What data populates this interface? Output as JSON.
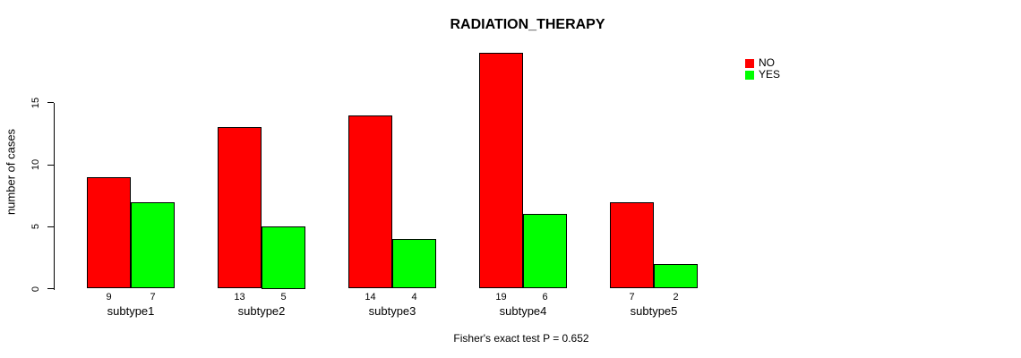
{
  "chart_data": {
    "type": "bar",
    "title": "RADIATION_THERAPY",
    "categories": [
      "subtype1",
      "subtype2",
      "subtype3",
      "subtype4",
      "subtype5"
    ],
    "series": [
      {
        "name": "NO",
        "color": "#ff0000",
        "values": [
          9,
          13,
          14,
          19,
          7
        ]
      },
      {
        "name": "YES",
        "color": "#00ff00",
        "values": [
          7,
          5,
          4,
          6,
          2
        ]
      }
    ],
    "value_labels": {
      "NO": [
        "9",
        "13",
        "14",
        "19",
        "7"
      ],
      "YES": [
        "7",
        "5",
        "4",
        "6",
        "2"
      ]
    },
    "xlabel": "",
    "ylabel": "number of cases",
    "yticks": [
      0,
      5,
      10,
      15
    ],
    "ylim": [
      0,
      19
    ],
    "grid": false,
    "legend_position": "top-right-outside",
    "note": "Fisher's exact test P = 0.652",
    "colors": {
      "background": "#ffffff",
      "axis": "#000000",
      "text": "#000000"
    }
  }
}
